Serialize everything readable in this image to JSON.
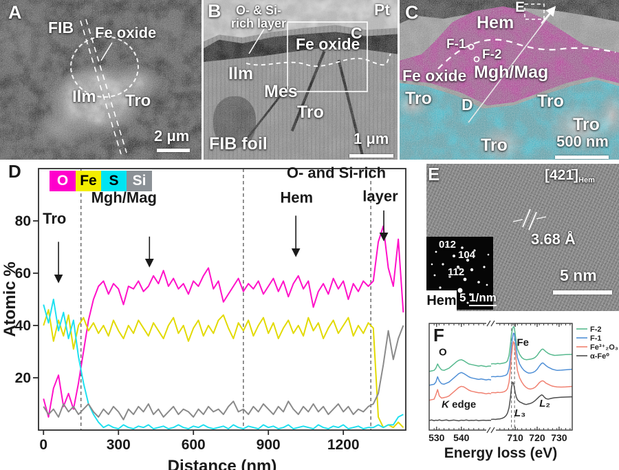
{
  "panels": {
    "A": {
      "label": "A",
      "fib": "FIB",
      "fe_oxide": "Fe oxide",
      "ilm": "Ilm",
      "tro": "Tro",
      "scale_bar": "2 μm"
    },
    "B": {
      "label": "B",
      "layer_line1": "O- & Si-",
      "layer_line2": "rich layer",
      "pt": "Pt",
      "box_label": "C",
      "fe_oxide": "Fe oxide",
      "ilm": "Ilm",
      "mes": "Mes",
      "tro": "Tro",
      "fib_foil": "FIB foil",
      "scale_bar": "1 μm"
    },
    "C": {
      "label": "C",
      "e_box": "E",
      "hem": "Hem",
      "f1": "F-1",
      "f2": "F-2",
      "fe_oxide": "Fe oxide",
      "mgh_mag": "Mgh/Mag",
      "tro_left": "Tro",
      "tro_right": "Tro",
      "tro_bottom_right": "Tro",
      "tro_bottom": "Tro",
      "d_label": "D",
      "scale_bar": "500 nm"
    },
    "E": {
      "label": "E",
      "zone_axis": "[421̄]",
      "zone_axis_sub": "Hem",
      "d_spacing": "3.68 Å",
      "spot_1": "012",
      "spot_2": "104",
      "spot_3": "11̄2",
      "hem": "Hem",
      "recip_scale_prefix": "5",
      "recip_scale_unit": "1/nm",
      "scale_bar": "5 nm"
    }
  },
  "chart_data": [
    {
      "panel_label": "D",
      "type": "line",
      "xlabel": "Distance (nm)",
      "ylabel": "Atomic %",
      "xlim": [
        -20,
        1450
      ],
      "ylim": [
        0,
        100
      ],
      "x_ticks": [
        0,
        300,
        600,
        900,
        1200
      ],
      "y_ticks": [
        20,
        40,
        60,
        80
      ],
      "dashed_lines_x": [
        150,
        800,
        1310
      ],
      "legend": [
        {
          "label": "O",
          "box": "#ff00cc",
          "text": "#ffffff"
        },
        {
          "label": "Fe",
          "box": "#f4ee00",
          "text": "#000000"
        },
        {
          "label": "S",
          "box": "#00e4f2",
          "text": "#000000"
        },
        {
          "label": "Si",
          "box": "#8b9196",
          "text": "#ffffff"
        }
      ],
      "annotations": [
        {
          "text": "Tro",
          "x": 44,
          "y": 79,
          "arrow_x": 60,
          "arrow_y1": 72,
          "arrow_y2": 57
        },
        {
          "text": "Mgh/Mag",
          "x": 322,
          "y": 87,
          "arrow_x": 424,
          "arrow_y1": 74,
          "arrow_y2": 63
        },
        {
          "text": "Hem",
          "x": 1013,
          "y": 87,
          "arrow_x": 1010,
          "arrow_y1": 82,
          "arrow_y2": 67
        },
        {
          "text": "O- and Si-rich",
          "x": 1172,
          "y": 96.5
        },
        {
          "text": "layer",
          "x": 1348,
          "y": 87.5,
          "arrow_x": 1362,
          "arrow_y1": 84,
          "arrow_y2": 73
        }
      ],
      "x": [
        0,
        20,
        40,
        60,
        80,
        100,
        120,
        140,
        160,
        180,
        200,
        220,
        240,
        260,
        280,
        300,
        320,
        340,
        360,
        380,
        400,
        420,
        440,
        460,
        480,
        500,
        520,
        540,
        560,
        580,
        600,
        620,
        640,
        660,
        680,
        700,
        720,
        740,
        760,
        780,
        800,
        820,
        840,
        860,
        880,
        900,
        920,
        940,
        960,
        980,
        1000,
        1020,
        1040,
        1060,
        1080,
        1100,
        1120,
        1140,
        1160,
        1180,
        1200,
        1220,
        1240,
        1260,
        1280,
        1300,
        1320,
        1340,
        1360,
        1380,
        1400,
        1420,
        1440
      ],
      "series": [
        {
          "name": "O",
          "color": "#ff10c8",
          "values": [
            12,
            5,
            16,
            21,
            9,
            14,
            8,
            18,
            30,
            42,
            50,
            55,
            57,
            52,
            56,
            54,
            48,
            55,
            54,
            57,
            53,
            55,
            59,
            56,
            61,
            55,
            58,
            54,
            56,
            52,
            57,
            55,
            59,
            62,
            54,
            57,
            49,
            52,
            55,
            58,
            53,
            56,
            54,
            57,
            52,
            55,
            58,
            53,
            57,
            51,
            56,
            59,
            54,
            57,
            47,
            53,
            56,
            52,
            58,
            54,
            57,
            50,
            56,
            53,
            57,
            55,
            57,
            72,
            78,
            62,
            55,
            73,
            45
          ]
        },
        {
          "name": "Fe",
          "color": "#e2da00",
          "values": [
            40,
            46,
            34,
            42,
            36,
            44,
            31,
            40,
            43,
            38,
            41,
            37,
            40,
            36,
            42,
            38,
            35,
            40,
            37,
            42,
            39,
            36,
            41,
            38,
            35,
            40,
            43,
            37,
            40,
            34,
            39,
            42,
            36,
            40,
            37,
            42,
            44,
            39,
            35,
            41,
            38,
            42,
            36,
            40,
            43,
            37,
            41,
            35,
            39,
            42,
            37,
            40,
            36,
            43,
            38,
            41,
            35,
            39,
            42,
            37,
            40,
            43,
            36,
            40,
            37,
            41,
            39,
            5,
            1,
            2,
            1,
            3,
            1
          ]
        },
        {
          "name": "S",
          "color": "#1ee0f0",
          "values": [
            48,
            41,
            50,
            38,
            45,
            35,
            42,
            28,
            18,
            10,
            6,
            3,
            1,
            2,
            1,
            0.5,
            2,
            1,
            0.5,
            1.5,
            1,
            2,
            0.5,
            1,
            1.5,
            0.5,
            1,
            2,
            1,
            0.5,
            1.5,
            1,
            2,
            1,
            0.5,
            1,
            1.5,
            0.5,
            2,
            1,
            0.5,
            1.5,
            1,
            0.5,
            2,
            1,
            1.5,
            0.5,
            1,
            2,
            0.5,
            1,
            1.5,
            1,
            0.5,
            2,
            1,
            0.5,
            1.5,
            1,
            2,
            0.5,
            1,
            1.5,
            0.5,
            1,
            1,
            2,
            1,
            2,
            2,
            5,
            6
          ]
        },
        {
          "name": "Si",
          "color": "#8a8a8a",
          "values": [
            9,
            6,
            8,
            5,
            10,
            7,
            9,
            6,
            8,
            10,
            7,
            5,
            8,
            6,
            9,
            7,
            4,
            8,
            6,
            9,
            7,
            10,
            6,
            8,
            5,
            7,
            9,
            6,
            8,
            7,
            5,
            8,
            6,
            9,
            7,
            8,
            6,
            9,
            11,
            7,
            8,
            6,
            9,
            7,
            10,
            8,
            6,
            9,
            7,
            11,
            8,
            6,
            9,
            7,
            10,
            7,
            9,
            6,
            8,
            10,
            7,
            9,
            6,
            8,
            7,
            9,
            10,
            14,
            25,
            38,
            27,
            35,
            40
          ]
        }
      ]
    },
    {
      "panel_label": "F",
      "type": "line",
      "xlabel": "Energy loss (eV)",
      "ylabel": "",
      "axis_break_between": [
        552,
        699
      ],
      "x_ticks_left": [
        530,
        540
      ],
      "x_ticks_right": [
        710,
        720,
        730
      ],
      "dashed_lines_x": [
        708.3,
        709.7
      ],
      "labels": [
        {
          "parts": [
            {
              "t": "O"
            }
          ],
          "x": 532.5,
          "y": 70
        },
        {
          "parts": [
            {
              "t": "Fe"
            }
          ],
          "x": 713.5,
          "y": 79
        },
        {
          "parts": [
            {
              "t": "K",
              "italic": true
            },
            {
              "t": " edge"
            }
          ],
          "x": 539,
          "y": 21
        },
        {
          "parts": [
            {
              "t": "L",
              "italic": true
            },
            {
              "t": "₃"
            }
          ],
          "x": 712.2,
          "y": 13
        },
        {
          "parts": [
            {
              "t": "L",
              "italic": true
            },
            {
              "t": "₂"
            }
          ],
          "x": 723.5,
          "y": 22
        }
      ],
      "legend": [
        {
          "label": "F-2",
          "color": "#56b98e"
        },
        {
          "label": "F-1",
          "color": "#4f8fd6"
        },
        {
          "label": "Fe³⁺₂O₃",
          "color": "#f08070"
        },
        {
          "label": "α-Fe⁰",
          "color": "#4d4d4d"
        }
      ],
      "x_o_edge": [
        527,
        528,
        529,
        529.7,
        530.4,
        531.1,
        532,
        533,
        534,
        535,
        536,
        537,
        538,
        539,
        540,
        541,
        542,
        543,
        544,
        545,
        546,
        547,
        548,
        549,
        550,
        551,
        552
      ],
      "x_fe_edge": [
        699,
        700,
        701,
        702,
        703,
        704,
        705,
        705.8,
        706.5,
        707.2,
        707.8,
        708.3,
        708.8,
        709.2,
        709.6,
        710,
        710.5,
        711,
        712,
        713,
        714,
        715,
        716,
        717,
        718,
        719,
        720,
        721,
        722,
        722.6,
        723.2,
        724,
        725,
        726,
        727,
        728,
        729,
        731,
        733,
        736
      ],
      "series": [
        {
          "name": "F-2",
          "color": "#56b98e",
          "o_edge": [
            55,
            55.5,
            56,
            58,
            62,
            59,
            56.5,
            56,
            57,
            58,
            60,
            62,
            64,
            65.5,
            66,
            65,
            63.5,
            62,
            61.5,
            61,
            60.5,
            60,
            60.5,
            60,
            59.5,
            60,
            60
          ],
          "fe_edge": [
            62,
            62.3,
            62,
            62.5,
            62.2,
            62.6,
            63,
            63.5,
            65,
            70,
            80,
            90,
            95,
            97,
            96,
            90,
            82,
            76,
            71,
            68,
            66.5,
            66,
            66.2,
            66.5,
            67,
            68,
            70,
            73,
            75.5,
            76,
            75,
            73.5,
            72,
            71,
            70.5,
            70,
            70.2,
            70.5,
            70.8,
            71
          ]
        },
        {
          "name": "F-1",
          "color": "#4f8fd6",
          "o_edge": [
            42,
            42.5,
            43,
            45,
            50,
            46,
            43.5,
            43,
            44,
            45,
            47,
            49,
            51,
            53,
            54,
            53,
            51.5,
            50,
            49,
            48.5,
            48,
            47.5,
            48,
            47.5,
            47,
            47.5,
            47
          ],
          "fe_edge": [
            50,
            50.2,
            50,
            50.4,
            50.2,
            50.5,
            51,
            51.5,
            53,
            58,
            68,
            79,
            87,
            91,
            90,
            84,
            75,
            68,
            62,
            58.5,
            56,
            54.5,
            53.5,
            53.5,
            54,
            55,
            57,
            60,
            62.5,
            63,
            62,
            60.5,
            59,
            58,
            57,
            56.5,
            56,
            56.2,
            56.5,
            57
          ]
        },
        {
          "name": "Fe³⁺₂O₃",
          "color": "#f08070",
          "o_edge": [
            28,
            28.5,
            29,
            33,
            38,
            32,
            30,
            30.5,
            31,
            32,
            34,
            36,
            38,
            40,
            41,
            40.5,
            39,
            37.5,
            36.5,
            36,
            35.5,
            35,
            35,
            34.5,
            34,
            34.5,
            34
          ],
          "fe_edge": [
            35,
            35.2,
            35,
            35.4,
            35.2,
            35.5,
            36,
            37,
            39,
            45,
            57,
            70,
            79,
            83,
            81,
            74,
            64,
            56,
            49,
            45,
            42,
            40,
            38.8,
            38.5,
            39,
            40,
            42,
            44.5,
            46,
            46.2,
            45.5,
            44,
            43,
            42,
            41.2,
            40.8,
            40.5,
            40.3,
            40.5,
            41
          ]
        },
        {
          "name": "α-Fe⁰",
          "color": "#4d4d4d",
          "o_edge": [
            9,
            9.5,
            8.8,
            9.3,
            9,
            9.6,
            8.9,
            9.2,
            9.5,
            8.8,
            9.1,
            9.4,
            9,
            8.7,
            9.3,
            9,
            9.5,
            8.9,
            9.2,
            9,
            9.4,
            8.8,
            9.1,
            9.3,
            9,
            9.2,
            9
          ],
          "fe_edge": [
            10,
            10.2,
            10,
            10.3,
            10.5,
            11,
            12,
            13.5,
            16,
            21,
            30,
            40,
            45,
            44,
            40,
            35,
            31,
            28.5,
            26.5,
            25.5,
            24.5,
            24,
            24.5,
            25,
            26,
            27.5,
            29.5,
            31.5,
            33,
            32.5,
            31,
            29.5,
            29,
            29.5,
            30,
            30.3,
            30.5,
            30.8,
            31,
            31.2
          ]
        }
      ]
    }
  ]
}
